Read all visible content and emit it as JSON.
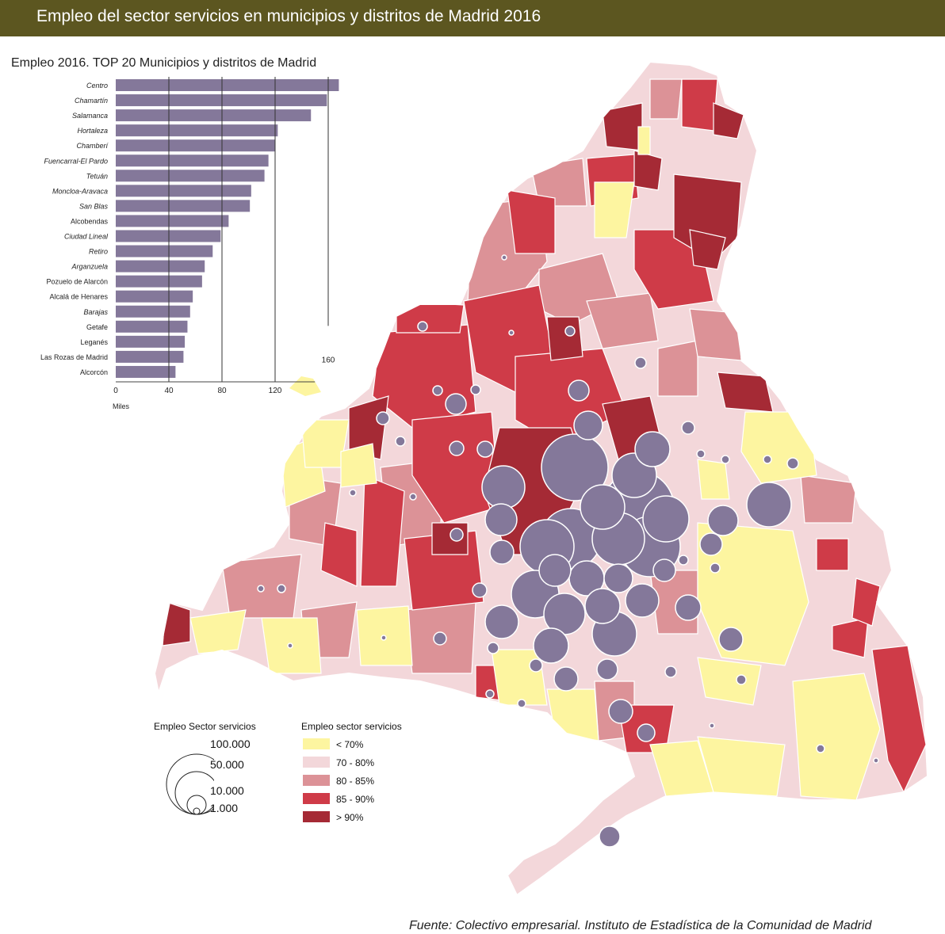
{
  "header": {
    "title": "Empleo del sector servicios en municipios y distritos de Madrid 2016"
  },
  "colors": {
    "header_bg": "#5c5620",
    "class_1": "#fdf5a0",
    "class_2": "#f3d7da",
    "class_3": "#dc9297",
    "class_4": "#cf3b48",
    "class_5": "#a52a35",
    "bubble": "#84789a",
    "bar": "#84789a"
  },
  "chart_data": {
    "type": "bar",
    "title": "Empleo 2016. TOP 20 Municipios y distritos de Madrid",
    "xlabel": "Miles",
    "orientation": "horizontal",
    "xlim": [
      0,
      165
    ],
    "ticks": [
      0,
      40,
      80,
      120
    ],
    "tick_labels": [
      "0",
      "40",
      "80",
      "120"
    ],
    "extra_label": "160",
    "categories": [
      "Centro",
      "Chamartín",
      "Salamanca",
      "Hortaleza",
      "Chamberí",
      "Fuencarral-El Pardo",
      "Tetuán",
      "Moncloa-Aravaca",
      "San Blas",
      "Alcobendas",
      "Ciudad Lineal",
      "Retiro",
      "Arganzuela",
      "Pozuelo de Alarcón",
      "Alcalá de Henares",
      "Barajas",
      "Getafe",
      "Leganés",
      "Las Rozas de Madrid",
      "Alcorcón"
    ],
    "italic_categories": [
      "Centro",
      "Chamartín",
      "Salamanca",
      "Hortaleza",
      "Chamberí",
      "Fuencarral-El Pardo",
      "Tetuán",
      "Moncloa-Aravaca",
      "San Blas",
      "Ciudad Lineal",
      "Retiro",
      "Arganzuela",
      "Barajas"
    ],
    "values": [
      168,
      159,
      147,
      122,
      120,
      115,
      112,
      102,
      101,
      85,
      79,
      73,
      67,
      65,
      58,
      56,
      54,
      52,
      51,
      45
    ]
  },
  "legend_size": {
    "title": "Empleo Sector servicios",
    "labels": [
      "100.000",
      "50.000",
      "10.000",
      "1.000"
    ],
    "values": [
      100000,
      50000,
      10000,
      1000
    ]
  },
  "legend_class": {
    "title": "Empleo sector servicios",
    "items": [
      {
        "label": "< 70%",
        "color": "#fdf5a0"
      },
      {
        "label": "70 - 80%",
        "color": "#f3d7da"
      },
      {
        "label": "80 - 85%",
        "color": "#dc9297"
      },
      {
        "label": "85 - 90%",
        "color": "#cf3b48"
      },
      {
        "label": "> 90%",
        "color": "#a52a35"
      }
    ]
  },
  "source": "Fuente: Colectivo empresarial. Instituto de Estadística de la Comunidad de Madrid"
}
